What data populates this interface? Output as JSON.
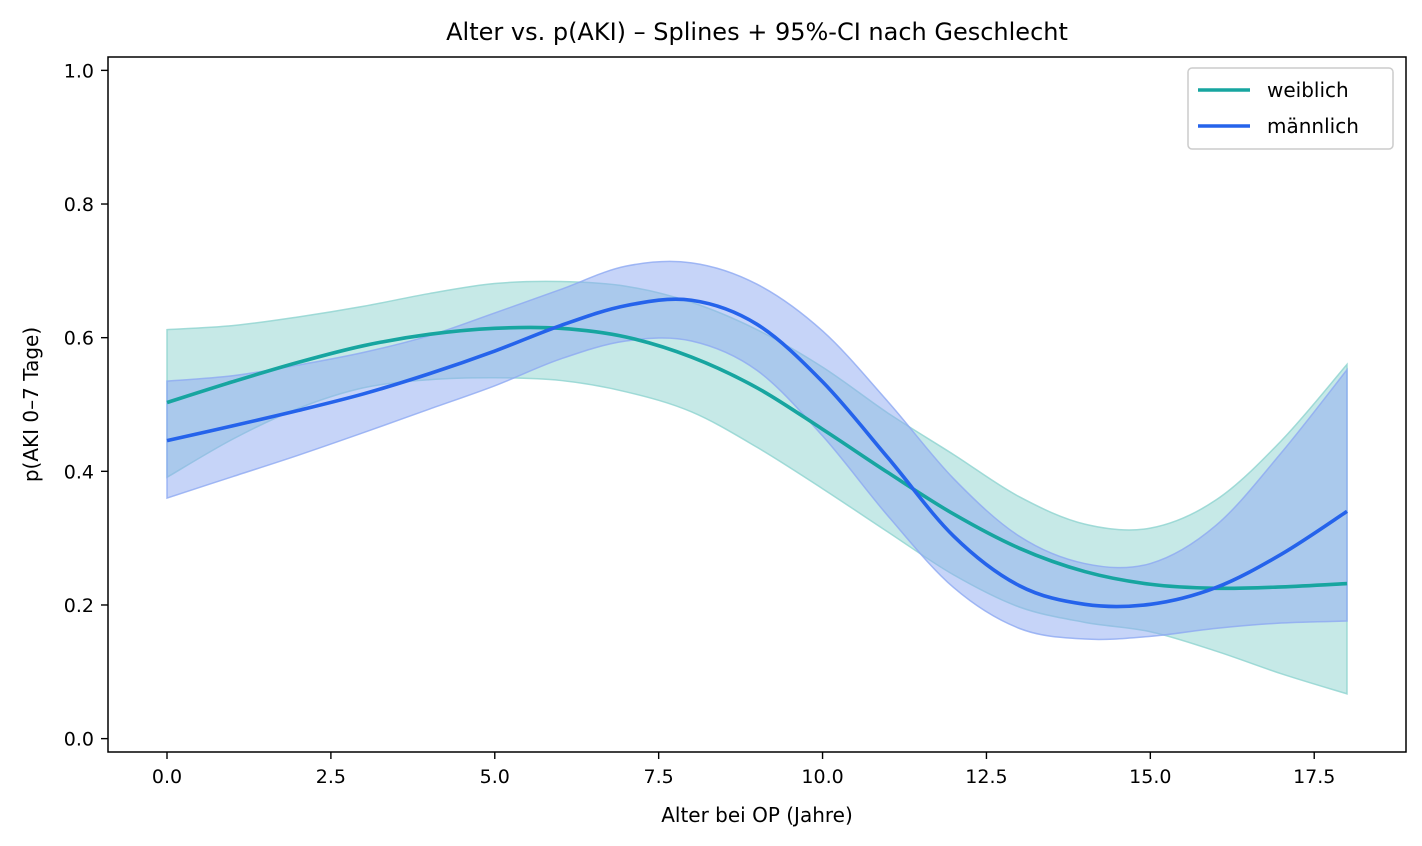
{
  "chart_data": {
    "type": "line",
    "title": "Alter vs. p(AKI) – Splines + 95%-CI nach Geschlecht",
    "xlabel": "Alter bei OP (Jahre)",
    "ylabel": "p(AKI 0–7 Tage)",
    "xlim": [
      -0.9,
      18.9
    ],
    "ylim": [
      -0.02,
      1.02
    ],
    "x_ticks": [
      0.0,
      2.5,
      5.0,
      7.5,
      10.0,
      12.5,
      15.0,
      17.5
    ],
    "x_tick_labels": [
      "0.0",
      "2.5",
      "5.0",
      "7.5",
      "10.0",
      "12.5",
      "15.0",
      "17.5"
    ],
    "y_ticks": [
      0.0,
      0.2,
      0.4,
      0.6,
      0.8,
      1.0
    ],
    "y_tick_labels": [
      "0.0",
      "0.2",
      "0.4",
      "0.6",
      "0.8",
      "1.0"
    ],
    "grid": false,
    "legend_position": "top-right",
    "x": [
      0,
      1,
      2,
      3,
      4,
      5,
      6,
      7,
      8,
      9,
      10,
      11,
      12,
      13,
      14,
      15,
      16,
      17,
      18
    ],
    "series": [
      {
        "name": "weiblich",
        "color": "#17a5a0",
        "band_color": "#8dd3cf",
        "values": [
          0.503,
          0.534,
          0.563,
          0.588,
          0.605,
          0.614,
          0.614,
          0.601,
          0.571,
          0.525,
          0.463,
          0.398,
          0.336,
          0.285,
          0.25,
          0.231,
          0.225,
          0.227,
          0.232
        ],
        "ci_lower": [
          0.391,
          0.448,
          0.494,
          0.525,
          0.537,
          0.54,
          0.536,
          0.519,
          0.489,
          0.436,
          0.374,
          0.309,
          0.245,
          0.197,
          0.174,
          0.16,
          0.131,
          0.097,
          0.067
        ],
        "ci_upper": [
          0.612,
          0.618,
          0.631,
          0.647,
          0.666,
          0.681,
          0.684,
          0.677,
          0.653,
          0.612,
          0.556,
          0.487,
          0.425,
          0.362,
          0.321,
          0.315,
          0.357,
          0.446,
          0.56
        ]
      },
      {
        "name": "männlich",
        "color": "#2563eb",
        "band_color": "#8da9f2",
        "values": [
          0.446,
          0.468,
          0.491,
          0.516,
          0.546,
          0.58,
          0.618,
          0.648,
          0.656,
          0.62,
          0.534,
          0.42,
          0.303,
          0.229,
          0.201,
          0.201,
          0.226,
          0.276,
          0.34
        ],
        "ci_lower": [
          0.36,
          0.392,
          0.424,
          0.458,
          0.493,
          0.528,
          0.568,
          0.595,
          0.595,
          0.551,
          0.453,
          0.333,
          0.226,
          0.165,
          0.149,
          0.153,
          0.165,
          0.173,
          0.176
        ],
        "ci_upper": [
          0.535,
          0.543,
          0.559,
          0.578,
          0.603,
          0.637,
          0.672,
          0.707,
          0.712,
          0.68,
          0.61,
          0.504,
          0.389,
          0.303,
          0.262,
          0.262,
          0.319,
          0.428,
          0.552
        ]
      }
    ]
  }
}
